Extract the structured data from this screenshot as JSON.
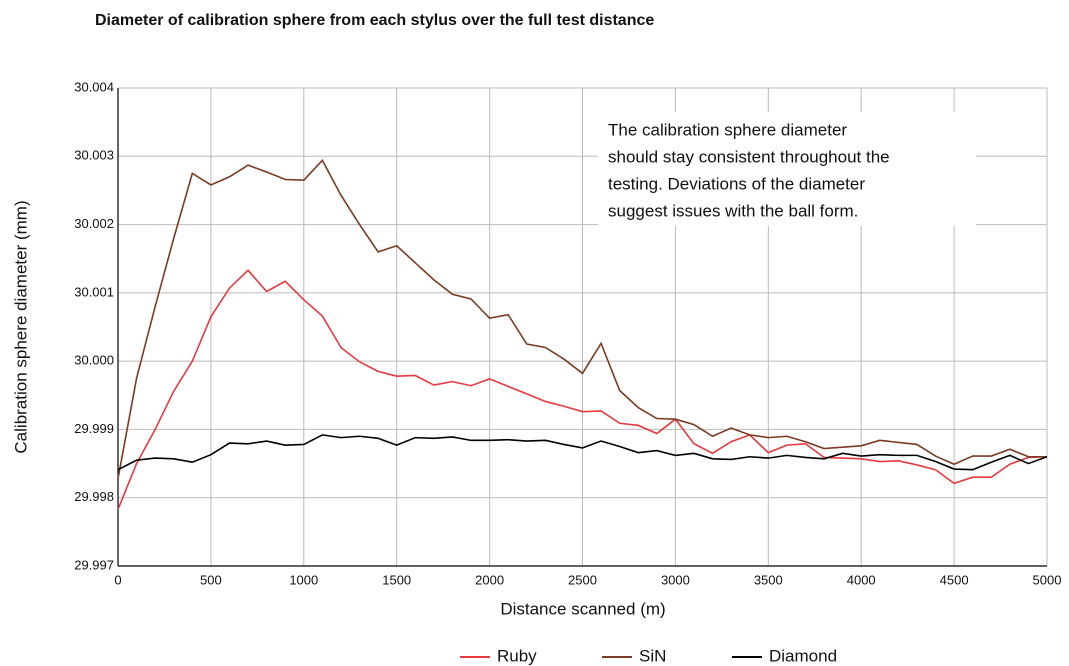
{
  "chart_data": {
    "type": "line",
    "title": "Diameter of calibration sphere from each stylus over the full test distance",
    "xlabel": "Distance scanned (m)",
    "ylabel": "Calibration sphere diameter (mm)",
    "annotation": [
      "The calibration sphere diameter",
      "should stay consistent throughout the",
      "testing. Deviations of the diameter",
      "suggest issues with the ball form."
    ],
    "x": [
      0,
      100,
      200,
      300,
      400,
      500,
      600,
      700,
      800,
      900,
      1000,
      1100,
      1200,
      1300,
      1400,
      1500,
      1600,
      1700,
      1800,
      1900,
      2000,
      2100,
      2200,
      2300,
      2400,
      2500,
      2600,
      2700,
      2800,
      2900,
      3000,
      3100,
      3200,
      3300,
      3400,
      3500,
      3600,
      3700,
      3800,
      3900,
      4000,
      4100,
      4200,
      4300,
      4400,
      4500,
      4600,
      4700,
      4800,
      4900,
      5000
    ],
    "series": [
      {
        "name": "Ruby",
        "color": "#e8393f",
        "values": [
          29.99783,
          29.9985,
          29.999,
          29.99956,
          30.0,
          30.00065,
          30.00107,
          30.00133,
          30.00102,
          30.00117,
          30.0009,
          30.00066,
          30.0002,
          29.99999,
          29.99985,
          29.99978,
          29.99979,
          29.99965,
          29.9997,
          29.99964,
          29.99974,
          29.99963,
          29.99952,
          29.99941,
          29.99934,
          29.99926,
          29.99927,
          29.99909,
          29.99906,
          29.99894,
          29.99915,
          29.99879,
          29.99865,
          29.99882,
          29.99892,
          29.99866,
          29.99877,
          29.99879,
          29.99859,
          29.99858,
          29.99857,
          29.99853,
          29.99854,
          29.99848,
          29.99841,
          29.99821,
          29.9983,
          29.9983,
          29.99849,
          29.99859,
          29.9986
        ]
      },
      {
        "name": "SiN",
        "color": "#7b3a22",
        "values": [
          29.99828,
          29.99975,
          30.0008,
          30.0018,
          30.00275,
          30.00258,
          30.0027,
          30.00287,
          30.00277,
          30.00266,
          30.00265,
          30.00294,
          30.00243,
          30.002,
          30.0016,
          30.00169,
          30.00144,
          30.00119,
          30.00098,
          30.00091,
          30.00063,
          30.00068,
          30.00025,
          30.0002,
          30.00003,
          29.99982,
          30.00026,
          29.99957,
          29.99932,
          29.99916,
          29.99915,
          29.99907,
          29.9989,
          29.99902,
          29.99892,
          29.99888,
          29.9989,
          29.99882,
          29.99872,
          29.99874,
          29.99876,
          29.99884,
          29.99881,
          29.99878,
          29.99861,
          29.99849,
          29.99861,
          29.99861,
          29.99871,
          29.9986,
          29.9986
        ]
      },
      {
        "name": "Diamond",
        "color": "#000000",
        "values": [
          29.99841,
          29.99855,
          29.99858,
          29.99857,
          29.99852,
          29.99863,
          29.9988,
          29.99879,
          29.99883,
          29.99877,
          29.99878,
          29.99892,
          29.99888,
          29.9989,
          29.99887,
          29.99877,
          29.99888,
          29.99887,
          29.99889,
          29.99884,
          29.99884,
          29.99885,
          29.99883,
          29.99884,
          29.99878,
          29.99873,
          29.99883,
          29.99875,
          29.99866,
          29.99869,
          29.99862,
          29.99865,
          29.99857,
          29.99856,
          29.9986,
          29.99858,
          29.99862,
          29.99859,
          29.99857,
          29.99865,
          29.99861,
          29.99863,
          29.99862,
          29.99862,
          29.99853,
          29.99842,
          29.99841,
          29.99852,
          29.99862,
          29.9985,
          29.9986
        ]
      }
    ],
    "xlim": [
      0,
      5000
    ],
    "xticks": [
      0,
      500,
      1000,
      1500,
      2000,
      2500,
      3000,
      3500,
      4000,
      4500,
      5000
    ],
    "ylim": [
      29.997,
      30.004
    ],
    "yticks": [
      29.997,
      29.998,
      29.999,
      {
        "value": 30,
        "label": "30.000"
      },
      30.001,
      30.002,
      30.003,
      30.004
    ],
    "grid": true,
    "legend": "bottom"
  }
}
